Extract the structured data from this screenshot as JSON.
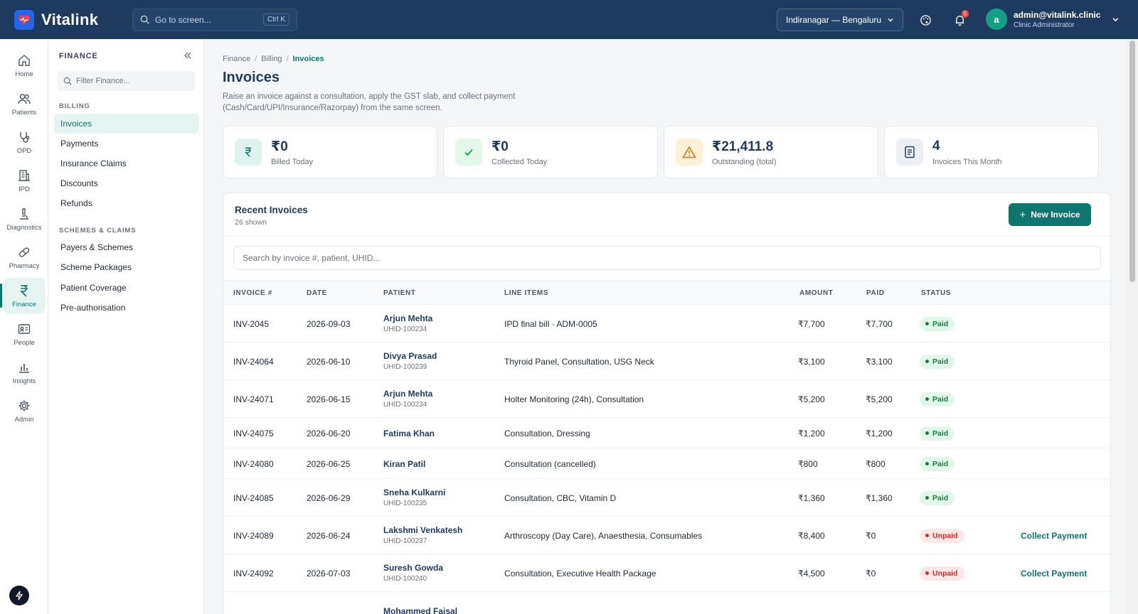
{
  "app": {
    "name": "Vitalink"
  },
  "topbar": {
    "search_placeholder": "Go to screen...",
    "search_shortcut": "Ctrl K",
    "location": "Indiranagar — Bengaluru",
    "notification_count": "5",
    "user": {
      "initial": "a",
      "email": "admin@vitalink.clinic",
      "role": "Clinic Administrator"
    }
  },
  "rail": [
    {
      "label": "Home",
      "icon": "home-icon"
    },
    {
      "label": "Patients",
      "icon": "users-icon"
    },
    {
      "label": "OPD",
      "icon": "stethoscope-icon"
    },
    {
      "label": "IPD",
      "icon": "building-icon"
    },
    {
      "label": "Diagnostics",
      "icon": "microscope-icon"
    },
    {
      "label": "Pharmacy",
      "icon": "pill-icon"
    },
    {
      "label": "Finance",
      "icon": "rupee-icon",
      "active": true
    },
    {
      "label": "People",
      "icon": "id-card-icon"
    },
    {
      "label": "Insights",
      "icon": "bar-chart-icon"
    },
    {
      "label": "Admin",
      "icon": "gear-icon"
    }
  ],
  "section": {
    "title": "FINANCE",
    "filter_placeholder": "Filter Finance...",
    "groups": [
      {
        "label": "BILLING",
        "items": [
          "Invoices",
          "Payments",
          "Insurance Claims",
          "Discounts",
          "Refunds"
        ]
      },
      {
        "label": "SCHEMES & CLAIMS",
        "items": [
          "Payers & Schemes",
          "Scheme Packages",
          "Patient Coverage",
          "Pre-authorisation"
        ]
      }
    ]
  },
  "breadcrumb": [
    "Finance",
    "Billing",
    "Invoices"
  ],
  "page": {
    "title": "Invoices",
    "description": "Raise an invoice against a consultation, apply the GST slab, and collect payment (Cash/Card/UPI/Insurance/Razorpay) from the same screen."
  },
  "stats": [
    {
      "value": "₹0",
      "label": "Billed Today",
      "icon": "rupee-icon",
      "color": "#e0f2ef"
    },
    {
      "value": "₹0",
      "label": "Collected Today",
      "icon": "check-icon",
      "color": "#e3f6ea"
    },
    {
      "value": "₹21,411.8",
      "label": "Outstanding (total)",
      "icon": "warning-icon",
      "color": "#fdf1d8"
    },
    {
      "value": "4",
      "label": "Invoices This Month",
      "icon": "document-icon",
      "color": "#eceff3"
    }
  ],
  "panel": {
    "title": "Recent Invoices",
    "subtitle": "26 shown",
    "new_button": "New Invoice",
    "search_placeholder": "Search by invoice #, patient, UHID..."
  },
  "table": {
    "columns": [
      "INVOICE #",
      "DATE",
      "PATIENT",
      "LINE ITEMS",
      "AMOUNT",
      "PAID",
      "STATUS"
    ],
    "rows": [
      {
        "invoice": "INV-2045",
        "date": "2026-09-03",
        "patient": "Arjun Mehta",
        "uhid": "UHID-100234",
        "items": "IPD final bill · ADM-0005",
        "amount": "₹7,700",
        "paid": "₹7,700",
        "status": "Paid"
      },
      {
        "invoice": "INV-24064",
        "date": "2026-06-10",
        "patient": "Divya Prasad",
        "uhid": "UHID-100239",
        "items": "Thyroid Panel, Consultation, USG Neck",
        "amount": "₹3,100",
        "paid": "₹3,100",
        "status": "Paid"
      },
      {
        "invoice": "INV-24071",
        "date": "2026-06-15",
        "patient": "Arjun Mehta",
        "uhid": "UHID-100234",
        "items": "Holter Monitoring (24h), Consultation",
        "amount": "₹5,200",
        "paid": "₹5,200",
        "status": "Paid"
      },
      {
        "invoice": "INV-24075",
        "date": "2026-06-20",
        "patient": "Fatima Khan",
        "uhid": "",
        "items": "Consultation, Dressing",
        "amount": "₹1,200",
        "paid": "₹1,200",
        "status": "Paid"
      },
      {
        "invoice": "INV-24080",
        "date": "2026-06-25",
        "patient": "Kiran Patil",
        "uhid": "",
        "items": "Consultation (cancelled)",
        "amount": "₹800",
        "paid": "₹800",
        "status": "Paid"
      },
      {
        "invoice": "INV-24085",
        "date": "2026-06-29",
        "patient": "Sneha Kulkarni",
        "uhid": "UHID-100235",
        "items": "Consultation, CBC, Vitamin D",
        "amount": "₹1,360",
        "paid": "₹1,360",
        "status": "Paid"
      },
      {
        "invoice": "INV-24089",
        "date": "2026-06-24",
        "patient": "Lakshmi Venkatesh",
        "uhid": "UHID-100237",
        "items": "Arthroscopy (Day Care), Anaesthesia, Consumables",
        "amount": "₹8,400",
        "paid": "₹0",
        "status": "Unpaid",
        "action": "Collect Payment"
      },
      {
        "invoice": "INV-24092",
        "date": "2026-07-03",
        "patient": "Suresh Gowda",
        "uhid": "UHID-100240",
        "items": "Consultation, Executive Health Package",
        "amount": "₹4,500",
        "paid": "₹0",
        "status": "Unpaid",
        "action": "Collect Payment"
      },
      {
        "invoice": "",
        "date": "",
        "patient": "Mohammed Faisal",
        "uhid": "",
        "items": "",
        "amount": "",
        "paid": "",
        "status": ""
      }
    ]
  }
}
